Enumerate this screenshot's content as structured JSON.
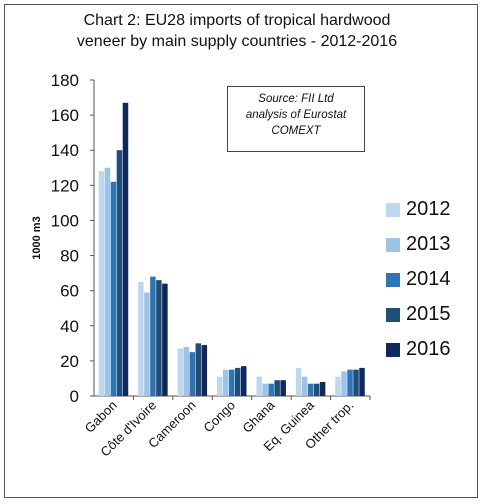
{
  "chart_data": {
    "type": "bar",
    "title_line1": "Chart 2: EU28 imports of tropical hardwood",
    "title_line2": "veneer by main supply countries - 2012-2016",
    "ylabel": "1000 m3",
    "xlabel": "",
    "ylim": [
      0,
      180
    ],
    "yticks": [
      0,
      20,
      40,
      60,
      80,
      100,
      120,
      140,
      160,
      180
    ],
    "grid": false,
    "legend_position": "right",
    "source_note": [
      "Source: FII Ltd",
      "analysis of Eurostat",
      "COMEXT"
    ],
    "categories": [
      "Gabon",
      "Côte d'Ivoire",
      "Cameroon",
      "Congo",
      "Ghana",
      "Eq. Guinea",
      "Other trop."
    ],
    "series": [
      {
        "name": "2012",
        "color": "#bdd7ee",
        "values": [
          128,
          65,
          27,
          11,
          11,
          16,
          11
        ]
      },
      {
        "name": "2013",
        "color": "#9dc3e6",
        "values": [
          130,
          59,
          28,
          15,
          7,
          11,
          14
        ]
      },
      {
        "name": "2014",
        "color": "#2e75b6",
        "values": [
          122,
          68,
          25,
          15,
          7,
          7,
          15
        ]
      },
      {
        "name": "2015",
        "color": "#1f4e79",
        "values": [
          140,
          66,
          30,
          16,
          9,
          7,
          15
        ]
      },
      {
        "name": "2016",
        "color": "#10285e",
        "values": [
          167,
          64,
          29,
          17,
          9,
          8,
          16
        ]
      }
    ]
  }
}
